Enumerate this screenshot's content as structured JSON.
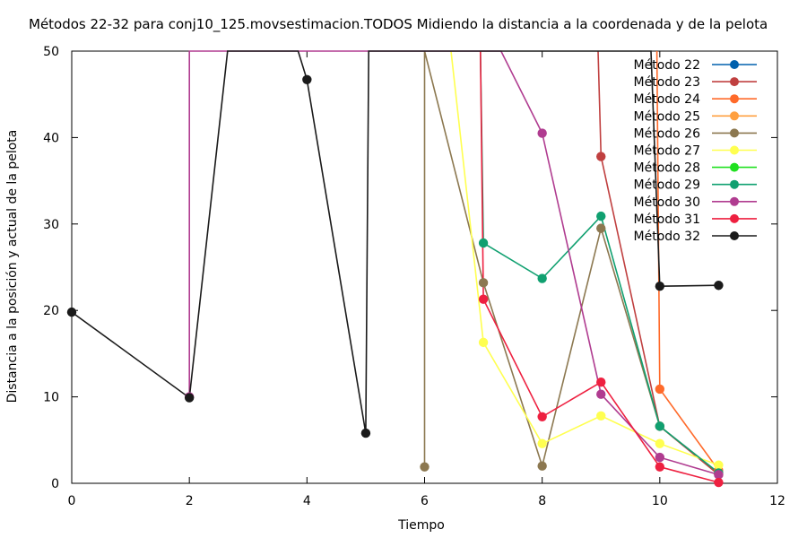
{
  "chart_data": {
    "type": "line",
    "title": "Métodos 22-32 para conj10_125.movsestimacion.TODOS Midiendo la distancia a la coordenada y de la pelota",
    "xlabel": "Tiempo",
    "ylabel": "Distancia a la posición y actual de la pelota",
    "xlim": [
      0,
      12
    ],
    "ylim": [
      0,
      50
    ],
    "xticks": [
      0,
      2,
      4,
      6,
      8,
      10,
      12
    ],
    "yticks": [
      0,
      10,
      20,
      30,
      40,
      50
    ],
    "grid": false,
    "legend_position": "top-right",
    "series": [
      {
        "name": "Método 22",
        "color": "#0060ad",
        "points": []
      },
      {
        "name": "Método 23",
        "color": "#c04040",
        "points": [
          [
            9,
            37.8
          ],
          [
            10,
            6.6
          ],
          [
            11,
            1.0
          ]
        ],
        "extends_above": [
          [
            8.95,
            50
          ]
        ]
      },
      {
        "name": "Método 24",
        "color": "#ff6a2a",
        "points": [
          [
            10,
            10.9
          ],
          [
            11,
            1.5
          ]
        ],
        "extends_above": [
          [
            9.95,
            50
          ]
        ]
      },
      {
        "name": "Método 25",
        "color": "#ffa040",
        "points": []
      },
      {
        "name": "Método 26",
        "color": "#8c7850",
        "points": [
          [
            6,
            1.9
          ],
          [
            7,
            23.2
          ],
          [
            8,
            2.0
          ],
          [
            9,
            29.5
          ],
          [
            10,
            6.6
          ],
          [
            11,
            1.2
          ]
        ],
        "extends_above": [
          [
            6.0,
            50
          ]
        ]
      },
      {
        "name": "Método 27",
        "color": "#ffff50",
        "points": [
          [
            7,
            16.3
          ],
          [
            8,
            4.6
          ],
          [
            9,
            7.8
          ],
          [
            10,
            4.6
          ],
          [
            11,
            2.1
          ]
        ],
        "extends_above": [
          [
            6.45,
            50
          ]
        ]
      },
      {
        "name": "Método 28",
        "color": "#20e020",
        "points": []
      },
      {
        "name": "Método 29",
        "color": "#10a070",
        "points": [
          [
            7,
            27.8
          ],
          [
            8,
            23.7
          ],
          [
            9,
            30.9
          ],
          [
            10,
            6.6
          ],
          [
            11,
            1.2
          ]
        ],
        "extends_above": [
          [
            6.95,
            50
          ]
        ]
      },
      {
        "name": "Método 30",
        "color": "#b03c90",
        "points": [
          [
            2,
            10.0
          ],
          [
            8,
            40.5
          ],
          [
            9,
            10.3
          ],
          [
            10,
            3.0
          ],
          [
            11,
            1.0
          ]
        ],
        "extends_above": [
          [
            2.0,
            50
          ],
          [
            7.3,
            50
          ]
        ]
      },
      {
        "name": "Método 31",
        "color": "#ee2040",
        "points": [
          [
            7,
            21.3
          ],
          [
            8,
            7.7
          ],
          [
            9,
            11.7
          ],
          [
            10,
            1.9
          ],
          [
            11,
            0.1
          ]
        ],
        "extends_above": [
          [
            6.95,
            50
          ]
        ]
      },
      {
        "name": "Método 32",
        "color": "#1a1a1a",
        "points": [
          [
            0,
            19.8
          ],
          [
            2,
            9.9
          ],
          [
            4,
            46.7
          ],
          [
            5,
            5.8
          ],
          [
            10,
            22.8
          ],
          [
            11,
            22.9
          ]
        ],
        "extends_above": [
          [
            2.65,
            50
          ],
          [
            3.85,
            50
          ],
          [
            5.05,
            50
          ],
          [
            9.85,
            50
          ]
        ]
      }
    ]
  }
}
